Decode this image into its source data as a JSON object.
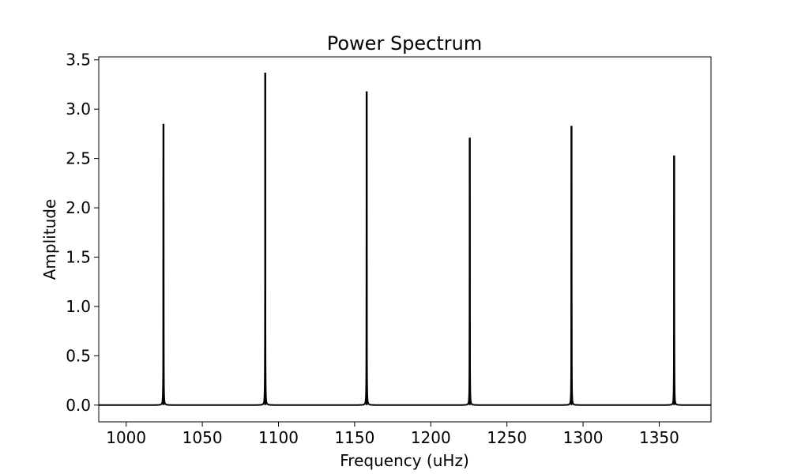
{
  "chart_data": {
    "type": "line",
    "title": "Power Spectrum",
    "xlabel": "Frequency (uHz)",
    "ylabel": "Amplitude",
    "xlim": [
      982,
      1384
    ],
    "ylim": [
      -0.17,
      3.53
    ],
    "xticks": [
      1000,
      1050,
      1100,
      1150,
      1200,
      1250,
      1300,
      1350
    ],
    "xtick_labels": [
      "1000",
      "1050",
      "1100",
      "1150",
      "1200",
      "1250",
      "1300",
      "1350"
    ],
    "yticks": [
      0.0,
      0.5,
      1.0,
      1.5,
      2.0,
      2.5,
      3.0,
      3.5
    ],
    "ytick_labels": [
      "0.0",
      "0.5",
      "1.0",
      "1.5",
      "2.0",
      "2.5",
      "3.0",
      "3.5"
    ],
    "grid": false,
    "line_color": "#000000",
    "baseline": 0.0,
    "peaks": [
      {
        "x": 1024.5,
        "y": 2.85
      },
      {
        "x": 1091.3,
        "y": 3.37
      },
      {
        "x": 1157.9,
        "y": 3.18
      },
      {
        "x": 1225.6,
        "y": 2.71
      },
      {
        "x": 1292.4,
        "y": 2.83
      },
      {
        "x": 1359.8,
        "y": 2.53
      }
    ]
  }
}
